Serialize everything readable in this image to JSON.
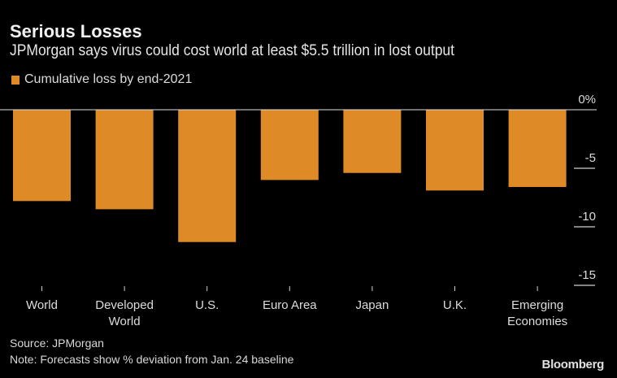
{
  "chart_data": {
    "type": "bar",
    "title": "Serious Losses",
    "subtitle": "JPMorgan says virus could cost world at least $5.5 trillion in lost output",
    "categories": [
      [
        "World"
      ],
      [
        "Developed",
        "World"
      ],
      [
        "U.S."
      ],
      [
        "Euro Area"
      ],
      [
        "Japan"
      ],
      [
        "U.K."
      ],
      [
        "Emerging",
        "Economies"
      ]
    ],
    "series": [
      {
        "name": "Cumulative loss by end-2021",
        "color": "#dd8a27",
        "values": [
          -7.8,
          -8.5,
          -11.3,
          -6.0,
          -5.4,
          -6.9,
          -6.6
        ]
      }
    ],
    "ylim": [
      -15,
      0
    ],
    "yticks": [
      {
        "value": 0,
        "label": "0%"
      },
      {
        "value": -5,
        "label": "-5"
      },
      {
        "value": -10,
        "label": "-10"
      },
      {
        "value": -15,
        "label": "-15"
      }
    ],
    "xlabel": "",
    "ylabel": "",
    "legend_position": "top-left",
    "grid": false
  },
  "footer": {
    "source": "Source: JPMorgan",
    "note": "Note: Forecasts show % deviation from Jan. 24 baseline",
    "brand": "Bloomberg"
  }
}
